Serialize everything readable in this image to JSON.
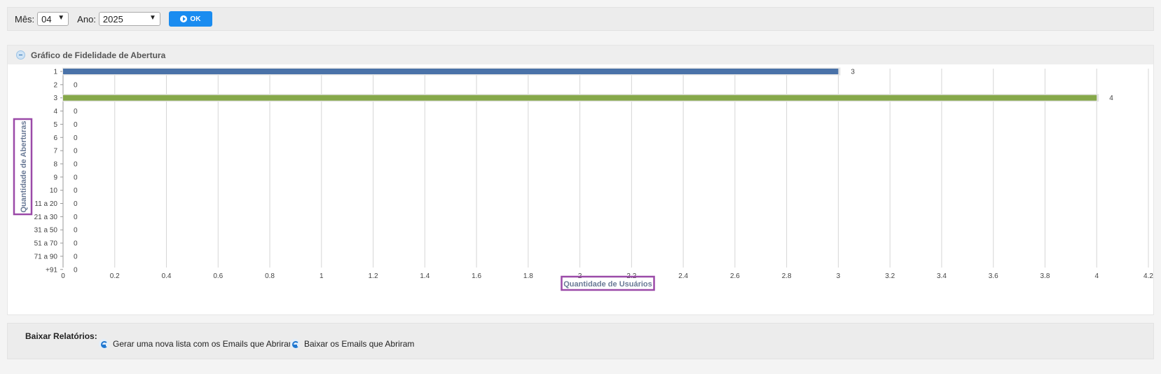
{
  "filters": {
    "mes_label": "Mês:",
    "mes_value": "04",
    "ano_label": "Ano:",
    "ano_value": "2025",
    "ok_label": "OK"
  },
  "panel": {
    "title": "Gráfico de Fidelidade de Abertura"
  },
  "downloads": {
    "title": "Baixar Relatórios:",
    "link1": "Gerar uma nova lista com os Emails que Abriram",
    "link2": "Baixar os Emails que Abriram"
  },
  "chart_data": {
    "type": "bar",
    "orientation": "horizontal",
    "categories": [
      "1",
      "2",
      "3",
      "4",
      "5",
      "6",
      "7",
      "8",
      "9",
      "10",
      "11 a 20",
      "21 a 30",
      "31 a 50",
      "51 a 70",
      "71 a 90",
      "+91"
    ],
    "values": [
      3,
      0,
      4,
      0,
      0,
      0,
      0,
      0,
      0,
      0,
      0,
      0,
      0,
      0,
      0,
      0
    ],
    "bar_colors": [
      "#4a72a8",
      "#4a72a8",
      "#86a84a",
      "#4a72a8",
      "#4a72a8",
      "#4a72a8",
      "#4a72a8",
      "#4a72a8",
      "#4a72a8",
      "#4a72a8",
      "#4a72a8",
      "#4a72a8",
      "#4a72a8",
      "#4a72a8",
      "#4a72a8",
      "#4a72a8"
    ],
    "xlabel": "Quantidade de Usuários",
    "ylabel": "Quantidade de Aberturas",
    "xlim": [
      0,
      4.2
    ],
    "xticks": [
      "0",
      "0.2",
      "0.4",
      "0.6",
      "0.8",
      "1",
      "1.2",
      "1.4",
      "1.6",
      "1.8",
      "2",
      "2.2",
      "2.4",
      "2.6",
      "2.8",
      "3",
      "3.2",
      "3.4",
      "3.6",
      "3.8",
      "4",
      "4.2"
    ],
    "grid": true,
    "label_highlight_color": "#9b4aa8"
  }
}
